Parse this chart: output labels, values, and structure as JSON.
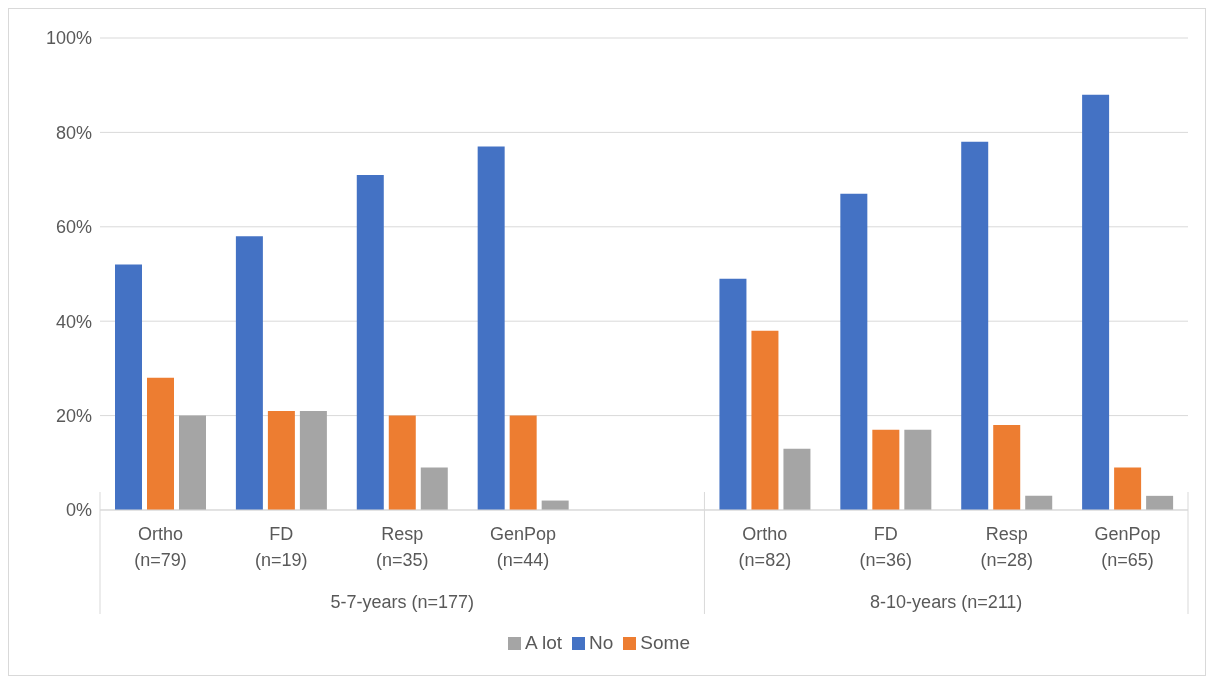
{
  "chart_data": {
    "type": "bar",
    "categories": [
      "Ortho (n=79)",
      "FD (n=19)",
      "Resp (n=35)",
      "GenPop (n=44)",
      null,
      "Ortho (n=82)",
      "FD (n=36)",
      "Resp (n=28)",
      "GenPop (n=65)"
    ],
    "series": [
      {
        "name": "No",
        "color": "#4472c4",
        "values": [
          52,
          58,
          71,
          77,
          null,
          49,
          67,
          78,
          88
        ]
      },
      {
        "name": "Some",
        "color": "#ed7d31",
        "values": [
          28,
          21,
          20,
          20,
          null,
          38,
          17,
          18,
          9
        ]
      },
      {
        "name": "A lot",
        "color": "#a5a5a5",
        "values": [
          20,
          21,
          9,
          2,
          null,
          13,
          17,
          3,
          3
        ]
      }
    ],
    "annotations": [
      "5-7-years (n=177)",
      "8-10-years (n=211)"
    ],
    "ylim": [
      0,
      100
    ],
    "yticks": [
      {
        "value": 0,
        "label": "0%"
      },
      {
        "value": 20,
        "label": "20%"
      },
      {
        "value": 40,
        "label": "40%"
      },
      {
        "value": 60,
        "label": "60%"
      },
      {
        "value": 80,
        "label": "80%"
      },
      {
        "value": 100,
        "label": "100%"
      }
    ],
    "grid": "y",
    "legend": "bottom"
  }
}
